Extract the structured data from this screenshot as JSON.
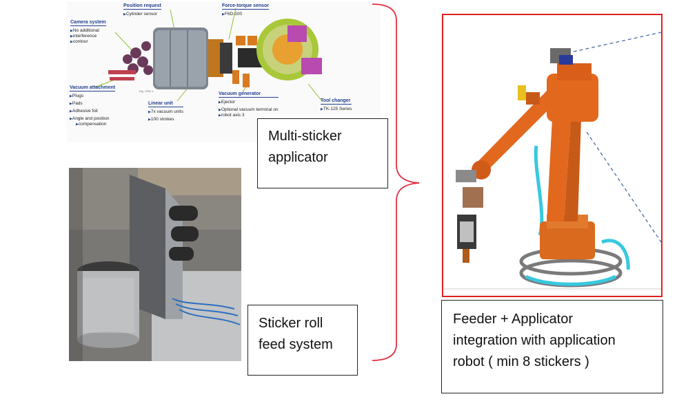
{
  "exploded_view": {
    "camera_system": {
      "title": "Camera system",
      "items": [
        "No additional",
        "interference",
        "contour"
      ]
    },
    "position_request": {
      "title": "Position request",
      "items": [
        "Cylinder sensor"
      ]
    },
    "force_torque_sensor": {
      "title": "Force-torque sensor",
      "items": [
        "F6D-100"
      ]
    },
    "vacuum_attachment": {
      "title": "Vacuum attachment",
      "items": [
        "Plugs",
        "Pads",
        "Adhesive foil",
        "Angle and position",
        "compensation"
      ]
    },
    "fig_caption": "Fig.: PSH 1",
    "linear_unit": {
      "title": "Linear unit",
      "items": [
        "7x vacuum units",
        "100 strokes"
      ]
    },
    "vacuum_generator": {
      "title": "Vacuum generator",
      "items": [
        "Ejector",
        "Optional vacuum terminal on",
        "robot axis 3"
      ]
    },
    "tool_changer": {
      "title": "Tool changer",
      "items": [
        "TK-125 Series"
      ]
    }
  },
  "boxes": {
    "multi_sticker": {
      "line1": "Multi-sticker",
      "line2": "applicator"
    },
    "sticker_roll": {
      "line1": "Sticker roll",
      "line2": "feed system"
    },
    "feeder": {
      "line1": "Feeder + Applicator",
      "line2": "integration with application",
      "line3": "robot ( min 8 stickers )"
    }
  },
  "colors": {
    "bracket": "#e03040",
    "frame": "#e02020",
    "robot_orange": "#e2681e",
    "hose_cyan": "#38c8e0"
  }
}
